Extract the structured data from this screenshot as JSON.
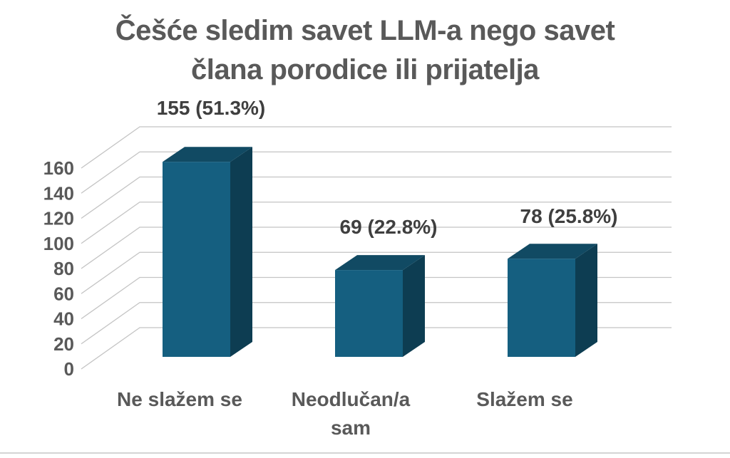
{
  "page": {
    "background": "#ffffff",
    "bottom_border_color": "#d4d4d4"
  },
  "chart_data": {
    "type": "bar",
    "is_3d": true,
    "title": "Češće sledim savet LLM-a nego savet člana porodice ili prijatelja",
    "title_lines": [
      "Češće sledim savet LLM-a nego savet",
      "člana porodice ili prijatelja"
    ],
    "categories": [
      "Ne slažem se",
      "Neodlučan/a sam",
      "Slažem se"
    ],
    "values": [
      155,
      69,
      78
    ],
    "percentages": [
      51.3,
      22.8,
      25.8
    ],
    "data_labels": [
      "155 (51.3%)",
      "69 (22.8%)",
      "78 (25.8%)"
    ],
    "xlabel": "",
    "ylabel": "",
    "ylim": [
      0,
      160
    ],
    "y_tick_step": 20,
    "y_ticks": [
      0,
      20,
      40,
      60,
      80,
      100,
      120,
      140,
      160
    ],
    "grid": true,
    "legend": "none",
    "colors": {
      "bar_front": "#155f80",
      "bar_top": "#114a63",
      "bar_side": "#0d3d52",
      "gridline": "#c4c4c4",
      "title_text": "#595959",
      "tick_text": "#595959",
      "category_text": "#595959",
      "data_label_text": "#3f3f3f"
    }
  }
}
